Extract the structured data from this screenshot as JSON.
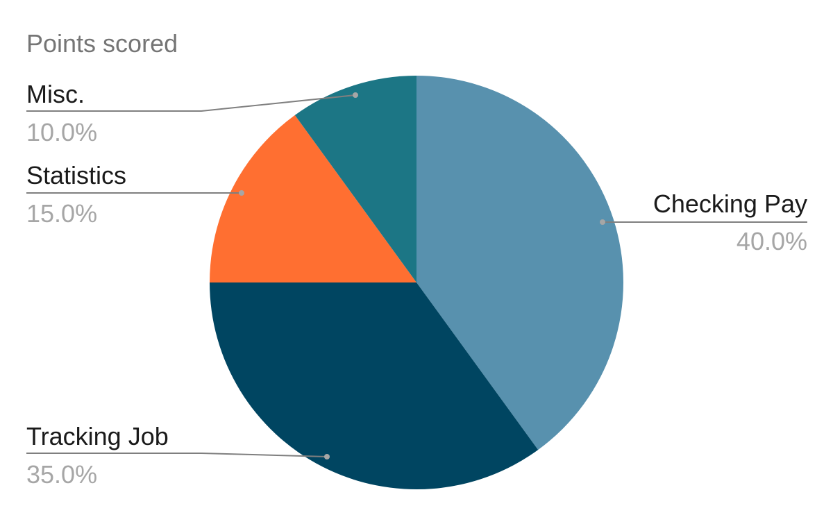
{
  "chart_data": {
    "type": "pie",
    "title": "Points scored",
    "slices": [
      {
        "label": "Checking Pay",
        "value": 40.0,
        "percent_label": "40.0%",
        "color": "#5891ae"
      },
      {
        "label": "Tracking Job",
        "value": 35.0,
        "percent_label": "35.0%",
        "color": "#004561"
      },
      {
        "label": "Statistics",
        "value": 15.0,
        "percent_label": "15.0%",
        "color": "#ff6f31"
      },
      {
        "label": "Misc.",
        "value": 10.0,
        "percent_label": "10.0%",
        "color": "#1c7685"
      }
    ],
    "start_angle": "12 o'clock",
    "direction": "clockwise",
    "legend": "none"
  }
}
